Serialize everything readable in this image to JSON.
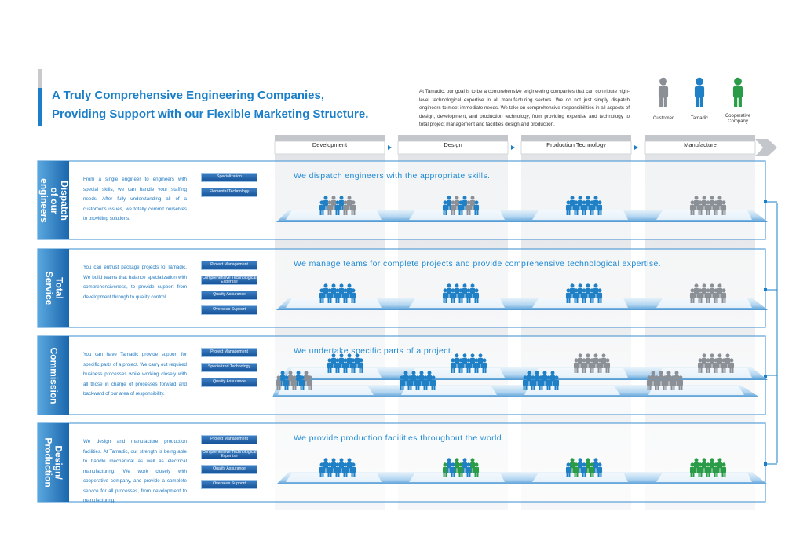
{
  "header": {
    "title": [
      "A Truly Comprehensive Engineering Companies,",
      "Providing Support with our Flexible Marketing Structure."
    ],
    "intro": "At Tamadic, our goal is to be a comprehensive engineering companies that can contribute high-level technological expertise in all manufacturing sectors. We do not just simply dispatch engineers to meet immediate needs. We take on comprehensive responsibilities in all aspects of design, development, and production technology, from providing expertise and technology to total project management and facilities design and production."
  },
  "legend": [
    "Customer",
    "Tamadic",
    "Cooperative Company"
  ],
  "phases": [
    "Development",
    "Design",
    "Production Technology",
    "Manufacture"
  ],
  "rows": [
    {
      "label": "Dispatch of our engineers",
      "description": "From a single engineer to engineers with special skills, we can handle your staffing needs. After fully understanding all of a customer's issues, we totally commit ourselves to providing solutions.",
      "tags": [
        "Specialization",
        "Elemental Technology"
      ],
      "headline": "We dispatch engineers with the appropriate skills."
    },
    {
      "label": "Total Service",
      "description": "You can entrust package projects to Tamadic. We build teams that balance specialization with comprehensiveness, to provide support from development through to quality control.",
      "tags": [
        "Project Management",
        "Comprehensive Technological Expertise",
        "Quality Assurance",
        "Overseas Support"
      ],
      "headline": "We manage teams for complete projects and provide comprehensive technological expertise."
    },
    {
      "label": "Commission",
      "description": "You can have Tamadic provide support for specific parts of a project. We carry out required business processes while working closely with all those in charge of processes forward and backward of our area of responsibility.",
      "tags": [
        "Project Management",
        "Specialized Technology",
        "Quality Assurance"
      ],
      "headline": "We undertake specific parts of a project."
    },
    {
      "label": "Design/ Production",
      "description": "We design and manufacture production facilities. At Tamadic, our strength is being able to handle mechanical as well as electrical manufacturing. We work closely with cooperative company, and provide a complete service for all processes, from development to manufacturing.",
      "tags": [
        "Project Management",
        "Comprehensive Technological Expertise",
        "Quality Assurance",
        "Overseas Support"
      ],
      "headline": "We provide production facilities throughout the world."
    }
  ]
}
